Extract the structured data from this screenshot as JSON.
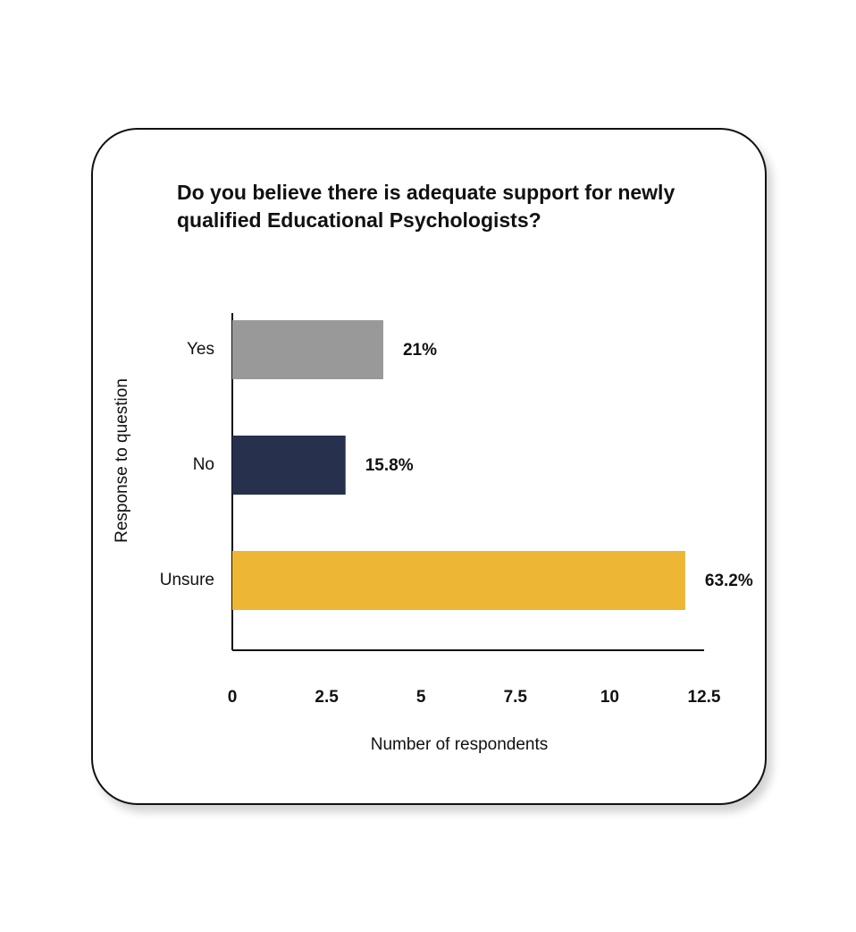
{
  "chart_data": {
    "type": "bar",
    "orientation": "horizontal",
    "title": "Do you believe there is adequate support for newly qualified Educational Psychologists?",
    "x_label": "Number of respondents",
    "y_label": "Response to question",
    "categories": [
      "Yes",
      "No",
      "Unsure"
    ],
    "values": [
      4,
      3,
      12
    ],
    "colors": [
      "#999999",
      "#27314d",
      "#edb634"
    ],
    "percent_values": [
      21,
      15.8,
      63.2
    ],
    "percent_labels": [
      "21%",
      "15.8%",
      "63.2%"
    ],
    "xlim": [
      0,
      12.5
    ],
    "xticks": [
      0,
      2.5,
      5,
      7.5,
      10,
      12.5
    ],
    "grid": false
  }
}
